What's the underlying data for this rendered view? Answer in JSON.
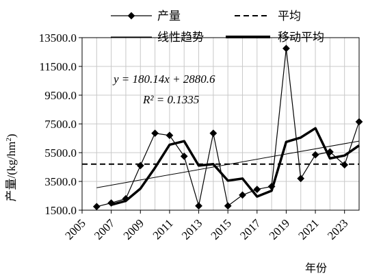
{
  "chart_data": {
    "type": "line",
    "xlabel": "年份",
    "ylabel": "产量/(kg/hm²)",
    "ylabel_main": "产量/(kg/hm",
    "ylabel_sup": "2",
    "ylabel_tail": ")",
    "xlim": [
      2005,
      2024
    ],
    "ylim": [
      1500,
      13500
    ],
    "x_ticks": [
      2005,
      2007,
      2009,
      2011,
      2013,
      2015,
      2017,
      2019,
      2021,
      2023
    ],
    "y_ticks": [
      1500,
      3500,
      5500,
      7500,
      9500,
      11500,
      13500
    ],
    "y_tick_labels": [
      "1500.0",
      "3500.0",
      "5500.0",
      "7500.0",
      "9500.0",
      "11500.0",
      "13500.0"
    ],
    "grid": true,
    "legend_position": "top",
    "legend": [
      "产量",
      "平均",
      "线性趋势",
      "移动平均"
    ],
    "annotation": {
      "equation": "y = 180.14x + 2880.6",
      "r2": "R² = 0.1335"
    },
    "x": [
      2006,
      2007,
      2008,
      2009,
      2010,
      2011,
      2012,
      2013,
      2014,
      2015,
      2016,
      2017,
      2018,
      2019,
      2020,
      2021,
      2022,
      2023,
      2024
    ],
    "series": [
      {
        "name": "产量",
        "style": "line-diamond",
        "values": [
          1750,
          2000,
          2300,
          4600,
          6850,
          6700,
          5250,
          1800,
          6850,
          1800,
          2550,
          2950,
          3150,
          12750,
          3700,
          5350,
          5550,
          4650,
          7650
        ]
      },
      {
        "name": "平均",
        "style": "dashed",
        "value": 4700
      },
      {
        "name": "线性趋势",
        "style": "thin",
        "x": [
          2006,
          2024
        ],
        "values": [
          3060.7,
          6303.2
        ]
      },
      {
        "name": "移动平均",
        "style": "thick",
        "x": [
          2007,
          2008,
          2009,
          2010,
          2011,
          2012,
          2013,
          2014,
          2015,
          2016,
          2017,
          2018,
          2019,
          2020,
          2021,
          2022,
          2023,
          2024
        ],
        "values": [
          1870,
          2150,
          3000,
          4450,
          6050,
          6300,
          4600,
          4700,
          3550,
          3700,
          2450,
          2850,
          6250,
          6550,
          7200,
          5100,
          5300,
          6000
        ]
      }
    ],
    "colors": {
      "line": "#000000",
      "grid": "#c8c8c8"
    }
  }
}
